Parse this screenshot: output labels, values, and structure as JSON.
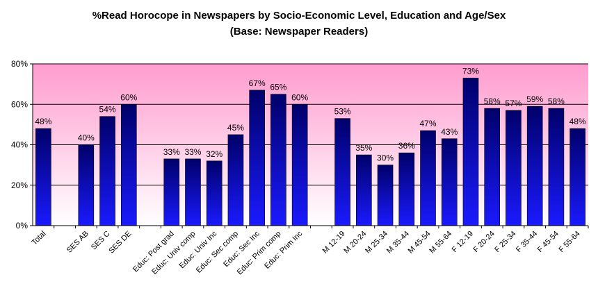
{
  "chart_data": {
    "type": "bar",
    "title": "%Read Horocope in Newspapers by Socio-Economic Level, Education and Age/Sex",
    "subtitle": "(Base: Newspaper Readers)",
    "xlabel": "",
    "ylabel": "",
    "ylim": [
      0,
      80
    ],
    "y_ticks": [
      "0%",
      "20%",
      "40%",
      "60%",
      "80%"
    ],
    "y_tick_values": [
      0,
      20,
      40,
      60,
      80
    ],
    "grid": true,
    "categories": [
      "Total",
      "",
      "SES AB",
      "SES C",
      "SES DE",
      "",
      "Educ: Post grad",
      "Educ: Univ comp",
      "Educ: Univ Inc",
      "Educ: Sec comp",
      "Educ: Sec Inc",
      "Educ: Prim comp",
      "Educ: Prim Inc",
      "",
      "M 12-19",
      "M 20-24",
      "M 25-34",
      "M 35-44",
      "M 45-54",
      "M 55-64",
      "F 12-19",
      "F 20-24",
      "F 25-34",
      "F 35-44",
      "F 45-54",
      "F 55-64"
    ],
    "values": [
      48,
      null,
      40,
      54,
      60,
      null,
      33,
      33,
      32,
      45,
      67,
      65,
      60,
      null,
      53,
      35,
      30,
      36,
      47,
      43,
      73,
      58,
      57,
      59,
      58,
      48
    ],
    "data_labels": [
      "48%",
      "",
      "40%",
      "54%",
      "60%",
      "",
      "33%",
      "33%",
      "32%",
      "45%",
      "67%",
      "65%",
      "60%",
      "",
      "53%",
      "35%",
      "30%",
      "36%",
      "47%",
      "43%",
      "73%",
      "58%",
      "57%",
      "59%",
      "58%",
      "48%"
    ]
  },
  "colors": {
    "bar_top": "#00006a",
    "bar_bottom": "#1a1aff",
    "plot_top": "#ff9ccf",
    "plot_bottom": "#ffffff",
    "gridline": "#000000"
  }
}
